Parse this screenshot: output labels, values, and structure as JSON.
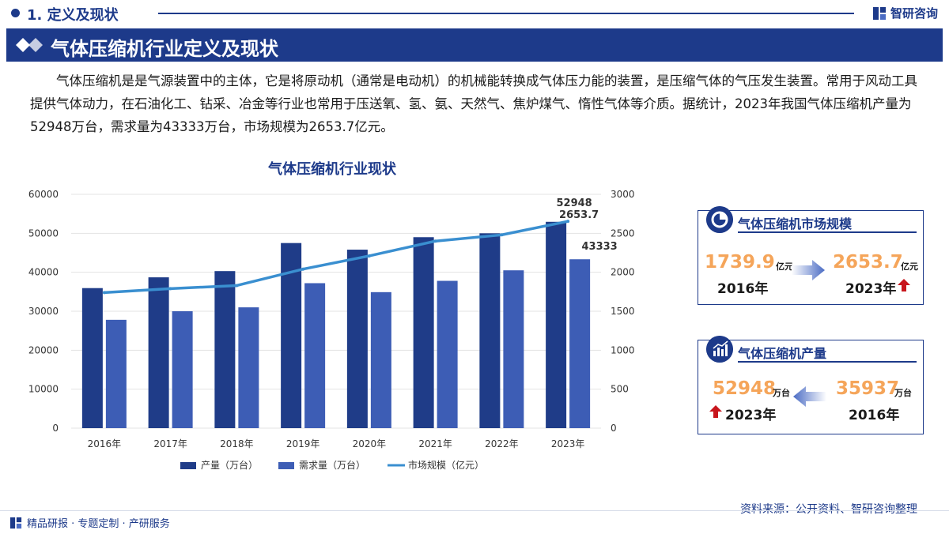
{
  "section": {
    "title": "1. 定义及现状"
  },
  "brand": {
    "name": "智研咨询"
  },
  "header": {
    "title": "气体压缩机行业定义及现状"
  },
  "intro": "气体压缩机是是气源装置中的主体，它是将原动机（通常是电动机）的机械能转换成气体压力能的装置，是压缩气体的气压发生装置。常用于风动工具提供气体动力，在石油化工、钻采、冶金等行业也常用于压送氧、氢、氨、天然气、焦炉煤气、惰性气体等介质。据统计，2023年我国气体压缩机产量为52948万台，需求量为43333万台，市场规模为2653.7亿元。",
  "chart_title": "气体压缩机行业现状",
  "chart_data": {
    "type": "bar",
    "categories": [
      "2016年",
      "2017年",
      "2018年",
      "2019年",
      "2020年",
      "2021年",
      "2022年",
      "2023年"
    ],
    "series": [
      {
        "name": "产量（万台）",
        "type": "bar",
        "axis": "left",
        "color": "#1f3c88",
        "values": [
          35937,
          38700,
          40300,
          47500,
          45800,
          49000,
          50000,
          52948
        ]
      },
      {
        "name": "需求量（万台）",
        "type": "bar",
        "axis": "left",
        "color": "#3d5db5",
        "values": [
          27800,
          30000,
          31000,
          37200,
          34900,
          37800,
          40500,
          43333
        ]
      },
      {
        "name": "市场规模（亿元）",
        "type": "line",
        "axis": "right",
        "color": "#3a8fd0",
        "values": [
          1739.9,
          1790,
          1830,
          2040,
          2210,
          2400,
          2480,
          2653.7
        ]
      }
    ],
    "ylim_left": [
      0,
      60000
    ],
    "yticks_left": [
      "0",
      "10000",
      "20000",
      "30000",
      "40000",
      "50000",
      "60000"
    ],
    "ylim_right": [
      0,
      3000
    ],
    "yticks_right": [
      "0",
      "500",
      "1000",
      "1500",
      "2000",
      "2500",
      "3000"
    ],
    "data_labels": {
      "prod_2023": "52948",
      "market_2023": "2653.7",
      "demand_2023": "43333"
    },
    "legend_position": "bottom"
  },
  "panel_market": {
    "title": "气体压缩机市场规模",
    "from_value": "1739.9",
    "from_unit": "亿元",
    "from_year": "2016年",
    "to_value": "2653.7",
    "to_unit": "亿元",
    "to_year": "2023年"
  },
  "panel_output": {
    "title": "气体压缩机产量",
    "new_value": "52948",
    "new_unit": "万台",
    "new_year": "2023年",
    "old_value": "35937",
    "old_unit": "万台",
    "old_year": "2016年"
  },
  "source": "资料来源：公开资料、智研咨询整理",
  "footer": "精品研报 · 专题定制 · 产研服务",
  "colors": {
    "primary": "#1d3a8a",
    "accent_orange": "#f5a55a",
    "up_arrow": "#c8161d"
  }
}
